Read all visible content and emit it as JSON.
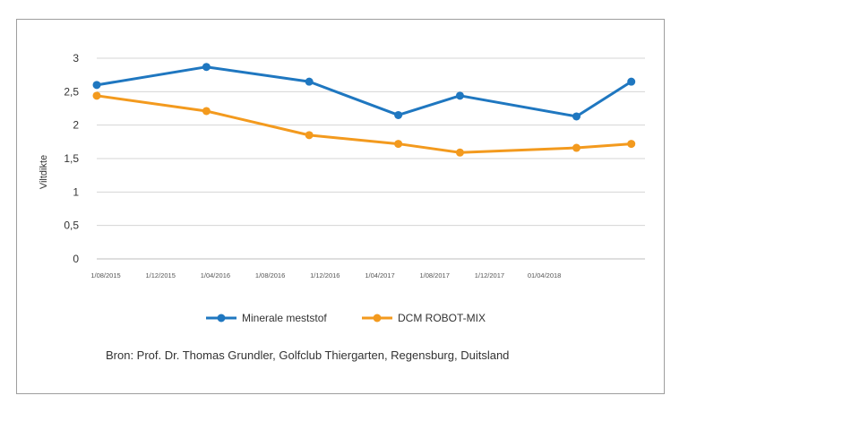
{
  "chart_data": {
    "type": "line",
    "ylabel": "Viltdikte",
    "ylim": [
      0,
      3
    ],
    "yticks": [
      "0",
      "0,5",
      "1",
      "1,5",
      "2",
      "2,5",
      "3"
    ],
    "ytick_values": [
      0,
      0.5,
      1,
      1.5,
      2,
      2.5,
      3
    ],
    "xticks": [
      "1/08/2015",
      "1/12/2015",
      "1/04/2016",
      "1/08/2016",
      "1/12/2016",
      "1/04/2017",
      "1/08/2017",
      "1/12/2017",
      "01/04/2018"
    ],
    "x": [
      0,
      4,
      8,
      12,
      16,
      20,
      24,
      28,
      32
    ],
    "grid": true,
    "legend_position": "bottom",
    "series": [
      {
        "name": "Minerale meststof",
        "color": "#1f77c0",
        "x": [
          0,
          8,
          15.5,
          22,
          26.5,
          35,
          39
        ],
        "values": [
          2.6,
          2.87,
          2.65,
          2.15,
          2.44,
          2.13,
          2.65
        ]
      },
      {
        "name": "DCM ROBOT-MIX",
        "color": "#f39a1e",
        "x": [
          0,
          8,
          15.5,
          22,
          26.5,
          35,
          39
        ],
        "values": [
          2.44,
          2.21,
          1.85,
          1.72,
          1.59,
          1.66,
          1.72
        ]
      }
    ]
  },
  "source": "Bron: Prof. Dr. Thomas Grundler, Golfclub Thiergarten, Regensburg, Duitsland"
}
